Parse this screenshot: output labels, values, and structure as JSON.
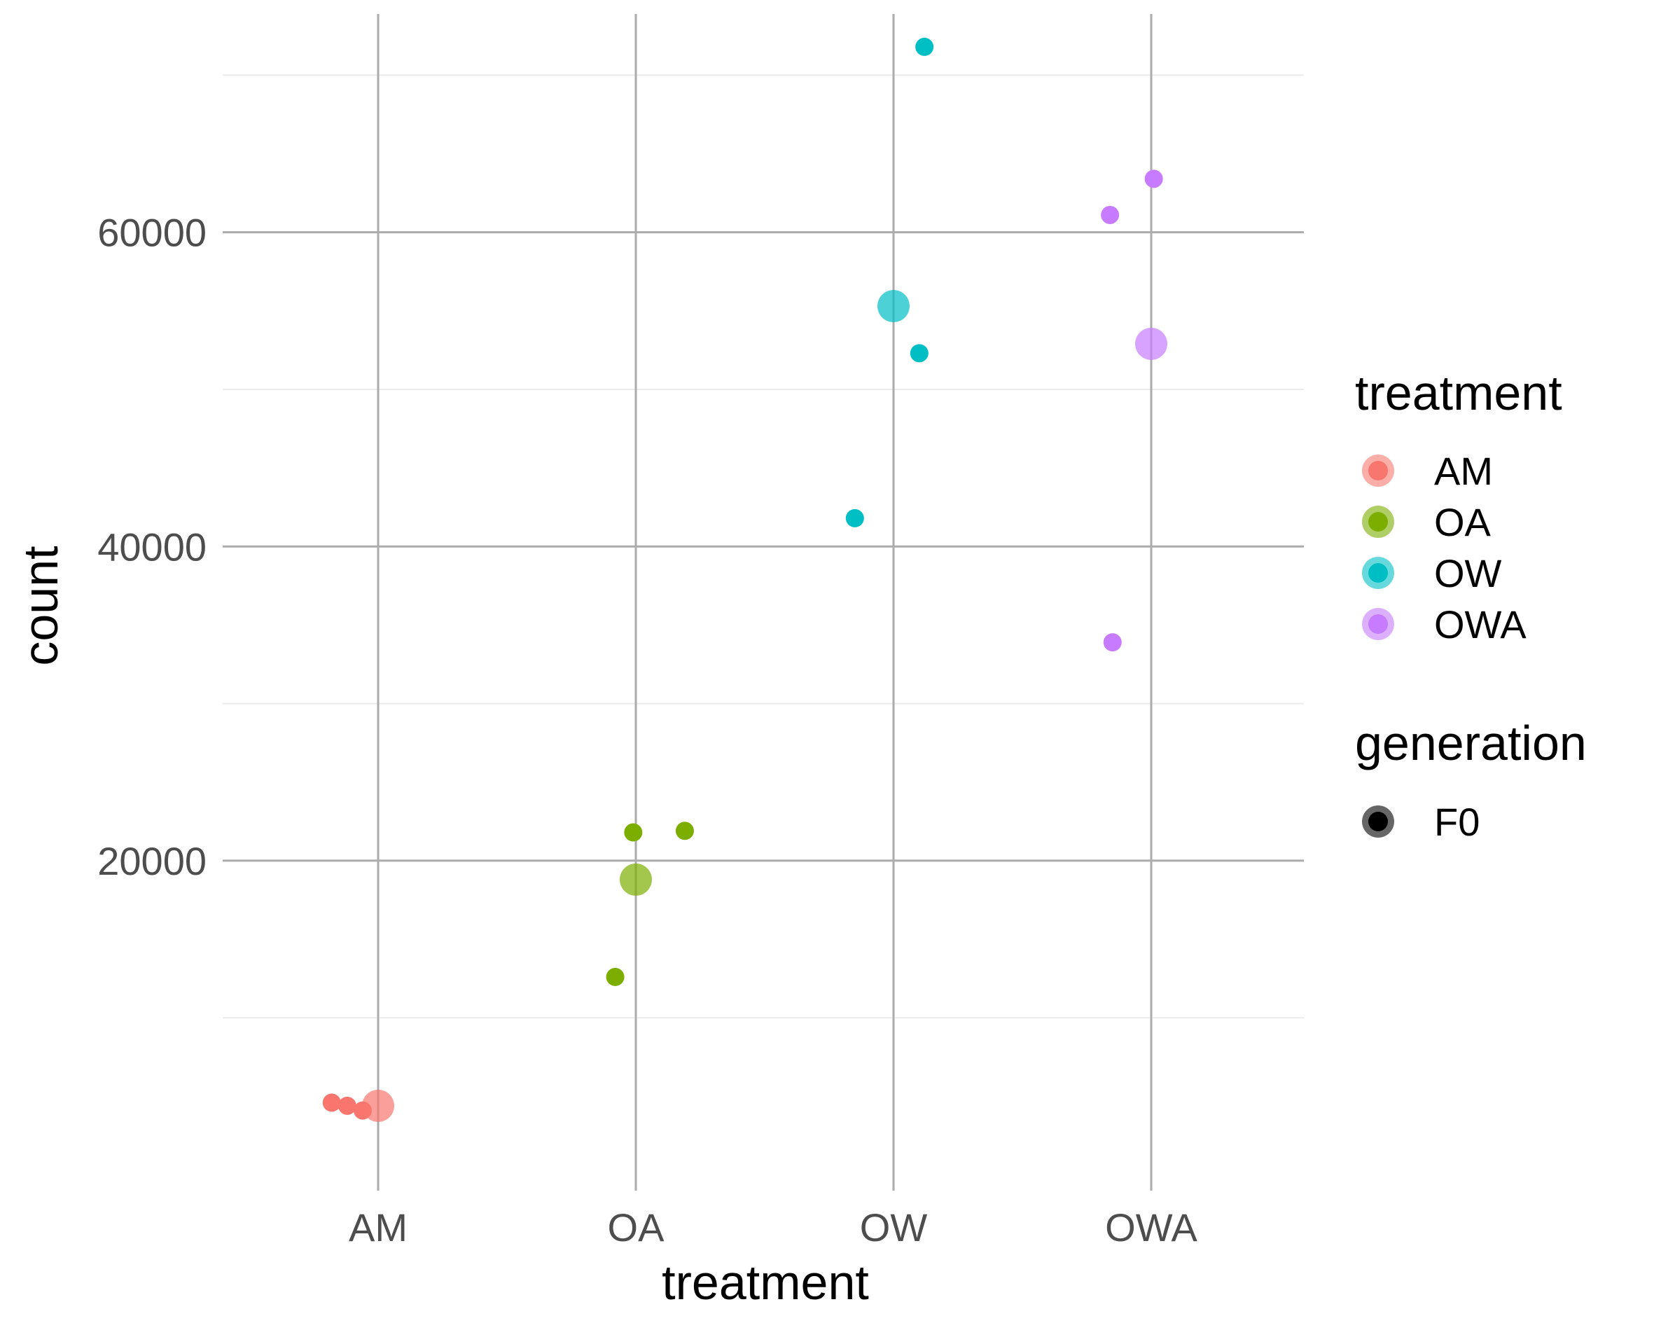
{
  "chart_data": {
    "type": "scatter",
    "xlabel": "treatment",
    "ylabel": "count",
    "categories": [
      "AM",
      "OA",
      "OW",
      "OWA"
    ],
    "ylim": [
      -1000,
      73000
    ],
    "y_ticks": [
      20000,
      40000,
      60000
    ],
    "grid": true,
    "series": [
      {
        "name": "AM",
        "color": "#F8766D",
        "points": [
          {
            "x": "AM",
            "jitter": -0.18,
            "y": 4600
          },
          {
            "x": "AM",
            "jitter": -0.12,
            "y": 4400
          },
          {
            "x": "AM",
            "jitter": -0.06,
            "y": 4100
          }
        ],
        "mean": 4400
      },
      {
        "name": "OA",
        "color": "#7CAE00",
        "points": [
          {
            "x": "OA",
            "jitter": -0.08,
            "y": 12600
          },
          {
            "x": "OA",
            "jitter": -0.01,
            "y": 21800
          },
          {
            "x": "OA",
            "jitter": 0.19,
            "y": 21900
          }
        ],
        "mean": 18800
      },
      {
        "name": "OW",
        "color": "#00BFC4",
        "points": [
          {
            "x": "OW",
            "jitter": -0.15,
            "y": 41800
          },
          {
            "x": "OW",
            "jitter": 0.1,
            "y": 52300
          },
          {
            "x": "OW",
            "jitter": 0.12,
            "y": 71800
          }
        ],
        "mean": 55300
      },
      {
        "name": "OWA",
        "color": "#C77CFF",
        "points": [
          {
            "x": "OWA",
            "jitter": -0.15,
            "y": 33900
          },
          {
            "x": "OWA",
            "jitter": -0.16,
            "y": 61100
          },
          {
            "x": "OWA",
            "jitter": 0.01,
            "y": 63400
          }
        ],
        "mean": 52900
      }
    ],
    "legend": {
      "placement": "right",
      "groups": [
        {
          "title": "treatment",
          "entries": [
            "AM",
            "OA",
            "OW",
            "OWA"
          ]
        },
        {
          "title": "generation",
          "entries": [
            "F0"
          ]
        }
      ]
    }
  }
}
